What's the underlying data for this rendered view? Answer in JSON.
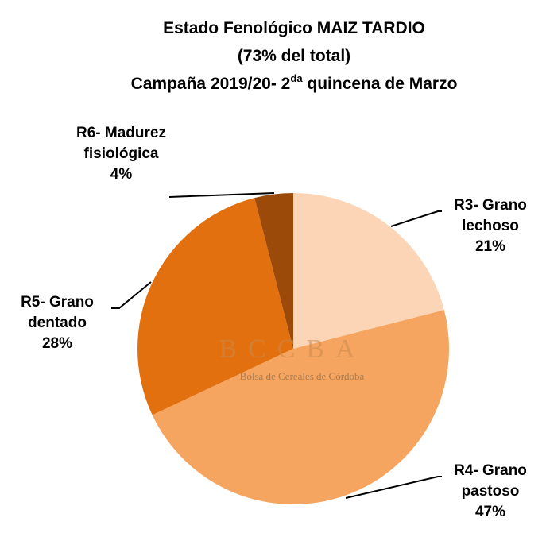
{
  "chart_data": {
    "type": "pie",
    "title": [
      "Estado Fenológico MAIZ TARDIO",
      "(73% del total)"
    ],
    "title_line3": [
      "Campaña 2019/20- 2",
      "da",
      " quincena de Marzo"
    ],
    "watermark": [
      "BCCBA",
      "Bolsa de Cereales de Córdoba"
    ],
    "categories": [
      "R3- Grano lechoso",
      "R4- Grano pastoso",
      "R5- Grano dentado",
      "R6- Madurez fisiológica"
    ],
    "values": [
      21,
      47,
      28,
      4
    ],
    "value_labels": [
      "21%",
      "47%",
      "28%",
      "4%"
    ],
    "colors": [
      "#fbd5b5",
      "#f5a55f",
      "#e3700f",
      "#9c4a0a"
    ]
  }
}
